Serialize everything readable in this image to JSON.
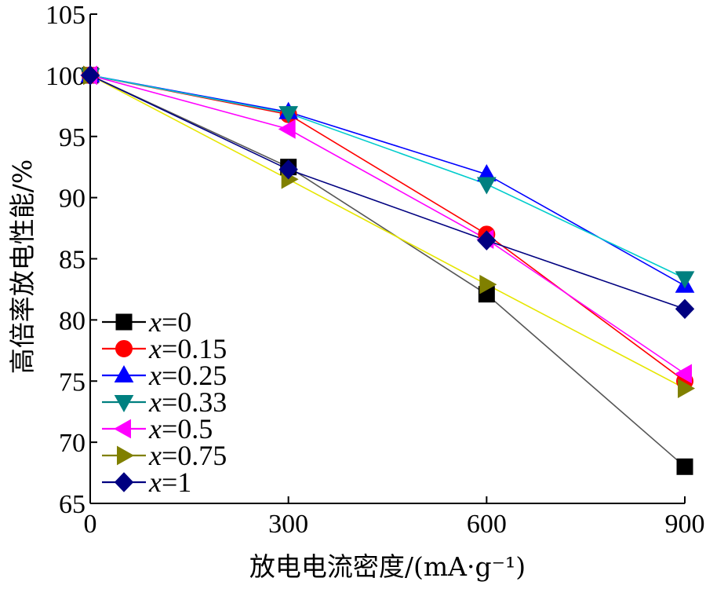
{
  "chart_data": {
    "type": "line",
    "x": [
      0,
      300,
      600,
      900
    ],
    "xticks": [
      "0",
      "300",
      "600",
      "900"
    ],
    "yticks": [
      "65",
      "70",
      "75",
      "80",
      "85",
      "90",
      "95",
      "100",
      "105"
    ],
    "xlim": [
      0,
      900
    ],
    "ylim": [
      65,
      105
    ],
    "xlabel": "放电电流密度/(mA·g⁻¹)",
    "ylabel": "高倍率放电性能/%",
    "grid": false,
    "legend_position": "bottom-left",
    "series": [
      {
        "name": "x=0",
        "var": "x",
        "rest": "=0",
        "color": "#000000",
        "line_color": "#555555",
        "marker": "square",
        "values": [
          100,
          92.5,
          82.1,
          68.0
        ]
      },
      {
        "name": "x=0.15",
        "var": "x",
        "rest": "=0.15",
        "color": "#ff0000",
        "line_color": "#ff0000",
        "marker": "circle",
        "values": [
          100,
          96.8,
          87.0,
          75.0
        ]
      },
      {
        "name": "x=0.25",
        "var": "x",
        "rest": "=0.25",
        "color": "#0000ff",
        "line_color": "#0000ff",
        "marker": "triangle-up",
        "values": [
          100,
          97.0,
          91.9,
          82.8
        ]
      },
      {
        "name": "x=0.33",
        "var": "x",
        "rest": "=0.33",
        "color": "#008080",
        "line_color": "#00cccc",
        "marker": "triangle-down",
        "values": [
          100,
          96.9,
          91.1,
          83.4
        ]
      },
      {
        "name": "x=0.5",
        "var": "x",
        "rest": "=0.5",
        "color": "#ff00ff",
        "line_color": "#ff00ff",
        "marker": "triangle-left",
        "values": [
          100,
          95.6,
          86.6,
          75.6
        ]
      },
      {
        "name": "x=0.75",
        "var": "x",
        "rest": "=0.75",
        "color": "#808000",
        "line_color": "#e6e600",
        "marker": "triangle-right",
        "values": [
          100,
          91.5,
          82.9,
          74.4
        ]
      },
      {
        "name": "x=1",
        "var": "x",
        "rest": "=1",
        "color": "#000080",
        "line_color": "#000080",
        "marker": "diamond",
        "values": [
          100,
          92.3,
          86.5,
          80.9
        ]
      }
    ]
  }
}
